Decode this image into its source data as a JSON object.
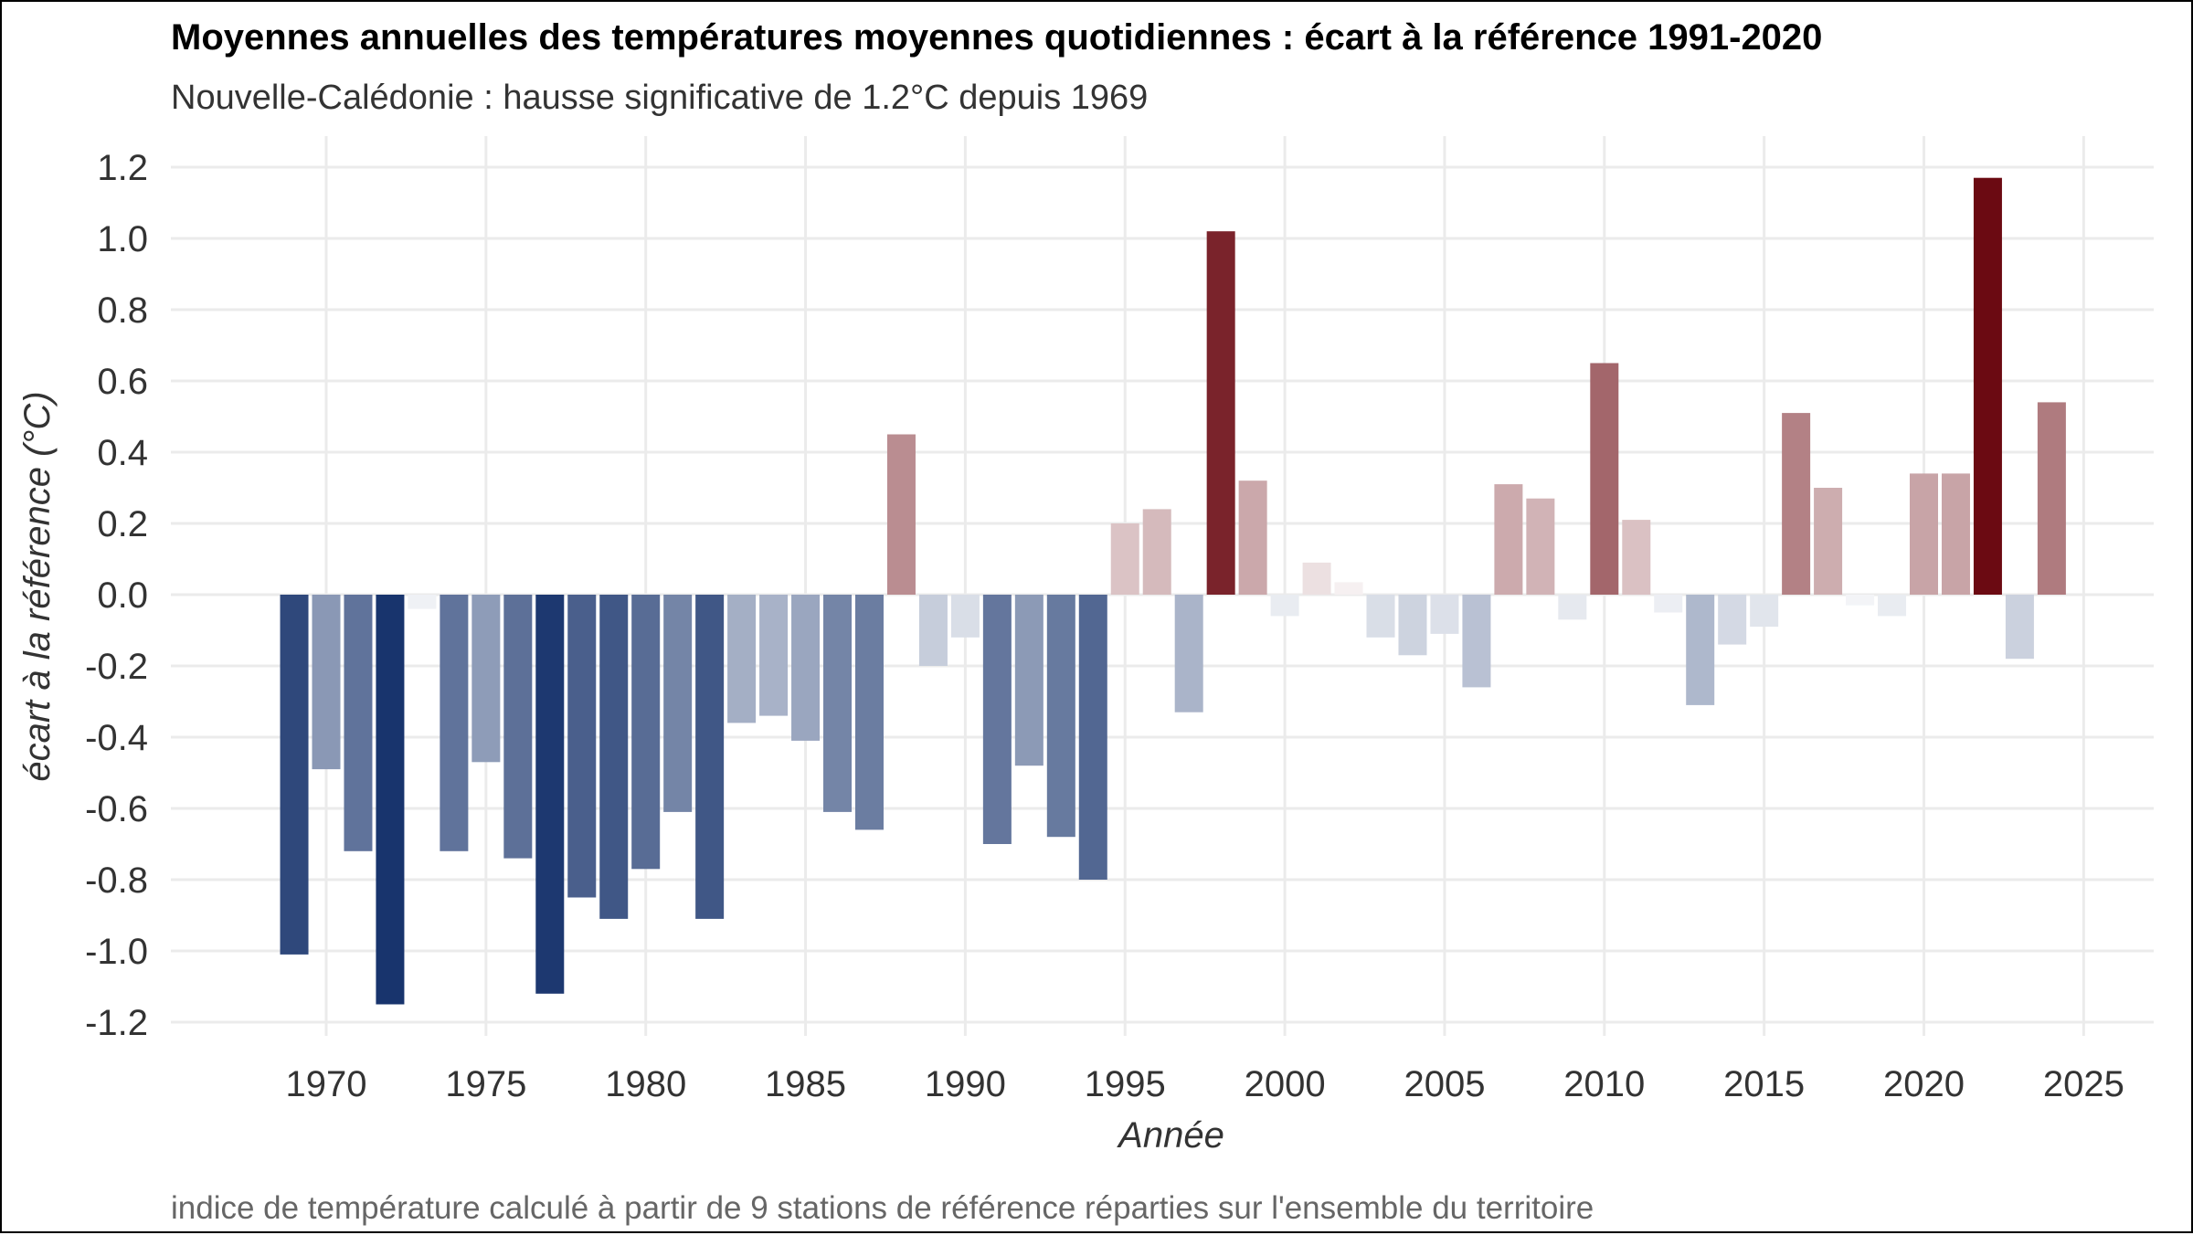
{
  "chart_data": {
    "type": "bar",
    "title": "Moyennes annuelles des températures moyennes quotidiennes : écart à la référence 1991-2020",
    "subtitle": "Nouvelle-Calédonie : hausse significative de 1.2°C depuis 1969",
    "xlabel": "Année",
    "ylabel": "écart à la référence (°C)",
    "caption": "indice de température calculé à partir de 9 stations de référence réparties sur l'ensemble du territoire",
    "xlim": [
      1966,
      2028
    ],
    "ylim": [
      -1.25,
      1.28
    ],
    "x_ticks": [
      "1970",
      "1975",
      "1980",
      "1985",
      "1990",
      "1995",
      "2000",
      "2005",
      "2010",
      "2015",
      "2020",
      "2025"
    ],
    "y_ticks": [
      "1.2",
      "1.0",
      "0.8",
      "0.6",
      "0.4",
      "0.2",
      "0.0",
      "-0.2",
      "-0.4",
      "-0.6",
      "-0.8",
      "-1.0",
      "-1.2"
    ],
    "grid": true,
    "color_scale": {
      "low": "#15316b",
      "mid": "#ffffff",
      "high": "#6b0a12"
    },
    "x": [
      1969,
      1970,
      1971,
      1972,
      1973,
      1974,
      1975,
      1976,
      1977,
      1978,
      1979,
      1980,
      1981,
      1982,
      1983,
      1984,
      1985,
      1986,
      1987,
      1988,
      1989,
      1990,
      1991,
      1992,
      1993,
      1994,
      1995,
      1996,
      1997,
      1998,
      1999,
      2000,
      2001,
      2002,
      2003,
      2004,
      2005,
      2006,
      2007,
      2008,
      2009,
      2010,
      2011,
      2012,
      2013,
      2014,
      2015,
      2016,
      2017,
      2018,
      2019,
      2020,
      2021,
      2022,
      2023,
      2024
    ],
    "values": [
      -1.01,
      -0.49,
      -0.72,
      -1.15,
      -0.04,
      -0.72,
      -0.47,
      -0.74,
      -1.12,
      -0.85,
      -0.91,
      -0.77,
      -0.61,
      -0.91,
      -0.36,
      -0.34,
      -0.41,
      -0.61,
      -0.66,
      0.45,
      -0.2,
      -0.12,
      -0.7,
      -0.48,
      -0.68,
      -0.8,
      0.2,
      0.24,
      -0.33,
      1.02,
      0.32,
      -0.06,
      0.09,
      0.035,
      -0.12,
      -0.17,
      -0.11,
      -0.26,
      0.31,
      0.27,
      -0.07,
      0.65,
      0.21,
      -0.05,
      -0.31,
      -0.14,
      -0.09,
      0.51,
      0.3,
      -0.03,
      -0.06,
      0.34,
      0.34,
      1.17,
      -0.18,
      0.54
    ]
  }
}
